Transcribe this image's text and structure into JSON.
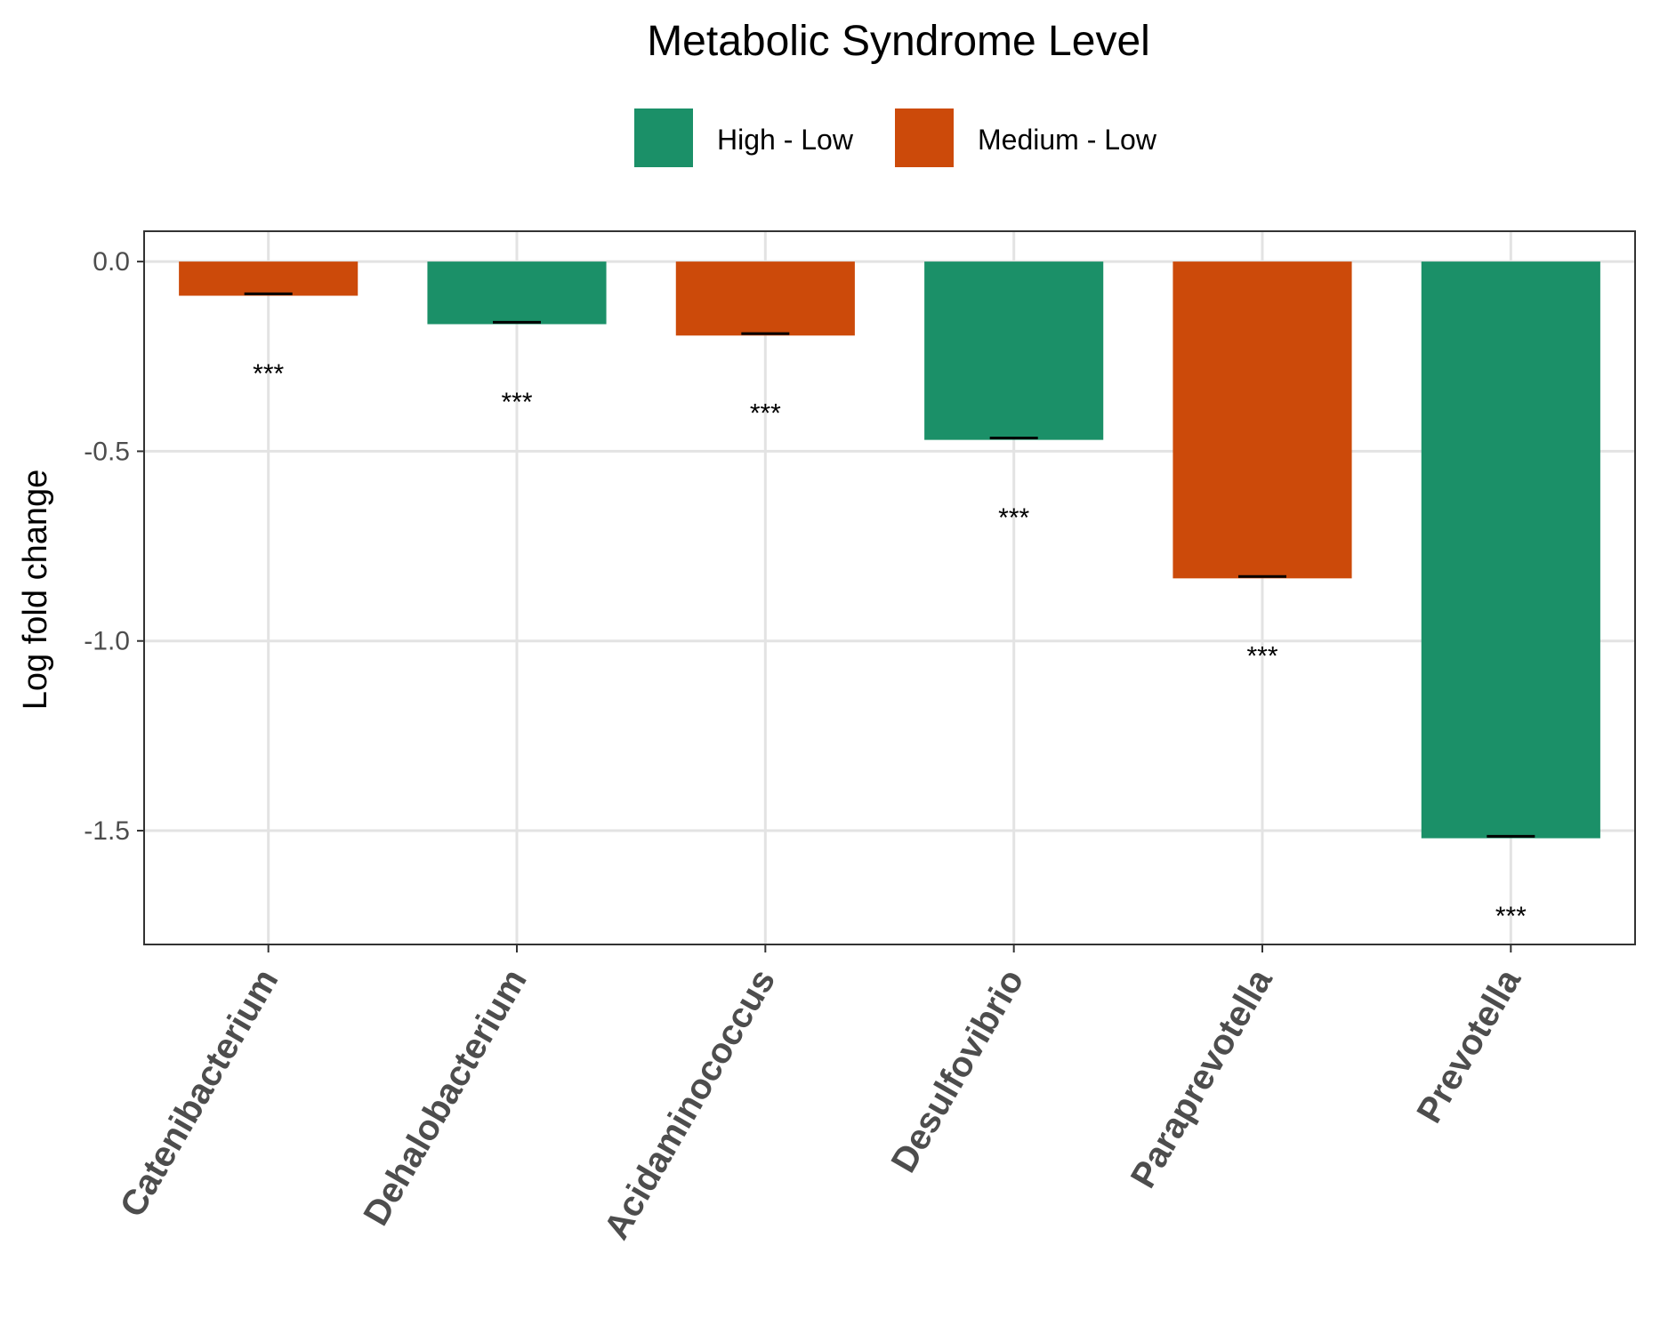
{
  "chart_data": {
    "type": "bar",
    "title": "Metabolic Syndrome Level",
    "ylabel": "Log fold change",
    "xlabel": "",
    "ylim": [
      -1.8,
      0.08
    ],
    "yticks": [
      0.0,
      -0.5,
      -1.0,
      -1.5
    ],
    "ytick_labels": [
      "0.0",
      "-0.5",
      "-1.0",
      "-1.5"
    ],
    "grid": true,
    "legend_position": "top",
    "legend": [
      {
        "name": "High - Low",
        "color": "#1b9068"
      },
      {
        "name": "Medium - Low",
        "color": "#cc4a0a"
      }
    ],
    "categories": [
      "Catenibacterium",
      "Dehalobacterium",
      "Acidaminococcus",
      "Desulfovibrio",
      "Paraprevotella",
      "Prevotella"
    ],
    "values": [
      -0.09,
      -0.165,
      -0.195,
      -0.47,
      -0.835,
      -1.52
    ],
    "group": [
      "Medium - Low",
      "High - Low",
      "Medium - Low",
      "High - Low",
      "Medium - Low",
      "High - Low"
    ],
    "error_bars": [
      -0.085,
      -0.16,
      -0.19,
      -0.465,
      -0.83,
      -1.515
    ],
    "significance": [
      "***",
      "***",
      "***",
      "***",
      "***",
      "***"
    ],
    "significance_y": [
      -0.29,
      -0.365,
      -0.395,
      -0.67,
      -1.035,
      -1.72
    ]
  }
}
